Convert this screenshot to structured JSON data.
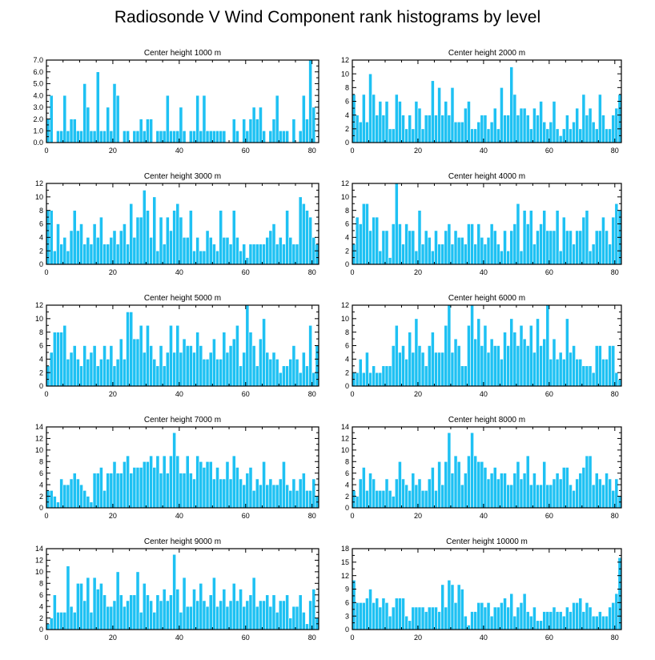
{
  "title": "Radiosonde V Wind Component rank histograms by level",
  "chart_data": [
    {
      "type": "bar",
      "title": "Center height 1000 m",
      "ylim": [
        0,
        7
      ],
      "yticks": [
        "0.0",
        "1.0",
        "2.0",
        "3.0",
        "4.0",
        "5.0",
        "6.0",
        "7.0"
      ],
      "xlim": [
        0,
        82
      ],
      "xticks": [
        0,
        20,
        40,
        60,
        80
      ],
      "values": [
        2,
        4,
        0,
        1,
        1,
        4,
        1,
        2,
        2,
        1,
        1,
        5,
        3,
        1,
        1,
        6,
        1,
        1,
        3,
        1,
        5,
        4,
        0,
        1,
        1,
        0,
        1,
        1,
        2,
        1,
        2,
        2,
        0,
        1,
        1,
        1,
        4,
        1,
        1,
        1,
        3,
        1,
        0,
        1,
        1,
        4,
        1,
        4,
        1,
        1,
        1,
        1,
        1,
        1,
        0,
        0,
        2,
        1,
        0,
        2,
        1,
        2,
        3,
        2,
        3,
        1,
        0,
        1,
        2,
        4,
        1,
        1,
        1,
        0,
        2,
        0,
        1,
        4,
        2,
        7,
        3,
        0
      ]
    },
    {
      "type": "bar",
      "title": "Center height 2000 m",
      "ylim": [
        0,
        12
      ],
      "yticks": [
        "0",
        "2",
        "4",
        "6",
        "8",
        "10",
        "12"
      ],
      "xlim": [
        0,
        82
      ],
      "xticks": [
        0,
        20,
        40,
        60,
        80
      ],
      "values": [
        7,
        4,
        3,
        7,
        3,
        10,
        7,
        4,
        6,
        4,
        6,
        2,
        2,
        7,
        6,
        4,
        2,
        4,
        2,
        6,
        5,
        2,
        4,
        4,
        9,
        4,
        8,
        4,
        6,
        4,
        8,
        3,
        3,
        3,
        5,
        6,
        2,
        2,
        3,
        4,
        4,
        2,
        3,
        5,
        2,
        8,
        4,
        4,
        11,
        7,
        4,
        5,
        5,
        4,
        2,
        5,
        4,
        6,
        3,
        2,
        3,
        6,
        2,
        1,
        2,
        4,
        2,
        3,
        5,
        2,
        7,
        4,
        5,
        3,
        2,
        7,
        4,
        2,
        2,
        4,
        5,
        7
      ]
    },
    {
      "type": "bar",
      "title": "Center height 3000 m",
      "ylim": [
        0,
        12
      ],
      "yticks": [
        "0",
        "2",
        "4",
        "6",
        "8",
        "10",
        "12"
      ],
      "xlim": [
        0,
        82
      ],
      "xticks": [
        0,
        20,
        40,
        60,
        80
      ],
      "values": [
        8,
        8,
        2,
        6,
        3,
        4,
        2,
        5,
        8,
        5,
        6,
        3,
        4,
        3,
        6,
        4,
        7,
        3,
        3,
        4,
        5,
        3,
        5,
        6,
        3,
        9,
        4,
        7,
        7,
        11,
        8,
        4,
        10,
        2,
        7,
        3,
        7,
        5,
        8,
        9,
        7,
        4,
        4,
        8,
        2,
        4,
        2,
        2,
        5,
        4,
        3,
        2,
        8,
        4,
        4,
        3,
        8,
        4,
        2,
        3,
        1,
        3,
        3,
        3,
        3,
        3,
        4,
        5,
        6,
        3,
        4,
        3,
        8,
        4,
        3,
        3,
        10,
        9,
        8,
        7,
        4,
        3
      ]
    },
    {
      "type": "bar",
      "title": "Center height 4000 m",
      "ylim": [
        0,
        12
      ],
      "yticks": [
        "0",
        "2",
        "4",
        "6",
        "8",
        "10",
        "12"
      ],
      "xlim": [
        0,
        82
      ],
      "xticks": [
        0,
        20,
        40,
        60,
        80
      ],
      "values": [
        3,
        7,
        6,
        9,
        9,
        5,
        7,
        7,
        2,
        5,
        5,
        1,
        6,
        12,
        6,
        3,
        6,
        5,
        5,
        2,
        8,
        3,
        5,
        4,
        2,
        5,
        3,
        3,
        5,
        6,
        3,
        5,
        4,
        4,
        3,
        6,
        6,
        3,
        6,
        4,
        3,
        4,
        6,
        5,
        3,
        2,
        5,
        2,
        5,
        6,
        9,
        2,
        8,
        6,
        8,
        3,
        5,
        6,
        8,
        5,
        5,
        5,
        8,
        2,
        7,
        5,
        5,
        3,
        5,
        5,
        7,
        8,
        2,
        3,
        5,
        5,
        7,
        5,
        3,
        7,
        9,
        8
      ]
    },
    {
      "type": "bar",
      "title": "Center height 5000 m",
      "ylim": [
        0,
        12
      ],
      "yticks": [
        "0",
        "2",
        "4",
        "6",
        "8",
        "10",
        "12"
      ],
      "xlim": [
        0,
        82
      ],
      "xticks": [
        0,
        20,
        40,
        60,
        80
      ],
      "values": [
        3,
        5,
        8,
        8,
        8,
        9,
        4,
        5,
        6,
        4,
        3,
        6,
        4,
        5,
        6,
        3,
        4,
        6,
        4,
        6,
        3,
        4,
        7,
        4,
        11,
        11,
        7,
        7,
        9,
        5,
        9,
        6,
        4,
        3,
        6,
        3,
        5,
        9,
        5,
        9,
        5,
        7,
        6,
        6,
        5,
        8,
        6,
        4,
        4,
        5,
        7,
        4,
        4,
        8,
        5,
        6,
        7,
        9,
        3,
        5,
        12,
        8,
        6,
        3,
        7,
        10,
        5,
        4,
        5,
        4,
        2,
        3,
        3,
        4,
        6,
        4,
        2,
        5,
        3,
        9,
        2,
        6
      ]
    },
    {
      "type": "bar",
      "title": "Center height 6000 m",
      "ylim": [
        0,
        12
      ],
      "yticks": [
        "0",
        "2",
        "4",
        "6",
        "8",
        "10",
        "12"
      ],
      "xlim": [
        0,
        82
      ],
      "xticks": [
        0,
        20,
        40,
        60,
        80
      ],
      "values": [
        2,
        2,
        4,
        2,
        5,
        2,
        3,
        2,
        2,
        3,
        3,
        3,
        6,
        9,
        5,
        6,
        4,
        8,
        5,
        10,
        6,
        5,
        3,
        6,
        8,
        5,
        5,
        5,
        9,
        12,
        5,
        7,
        6,
        3,
        3,
        9,
        12,
        7,
        10,
        6,
        9,
        5,
        7,
        6,
        6,
        4,
        8,
        6,
        10,
        8,
        6,
        9,
        7,
        6,
        9,
        5,
        10,
        6,
        7,
        12,
        4,
        7,
        4,
        5,
        4,
        10,
        5,
        6,
        4,
        4,
        3,
        3,
        3,
        2,
        6,
        6,
        4,
        4,
        6,
        6,
        2,
        1
      ]
    },
    {
      "type": "bar",
      "title": "Center height 7000 m",
      "ylim": [
        0,
        14
      ],
      "yticks": [
        "0",
        "2",
        "4",
        "6",
        "8",
        "10",
        "12",
        "14"
      ],
      "xlim": [
        0,
        82
      ],
      "xticks": [
        0,
        20,
        40,
        60,
        80
      ],
      "values": [
        3,
        3,
        2,
        1,
        5,
        4,
        4,
        5,
        6,
        5,
        4,
        3,
        2,
        1,
        6,
        6,
        7,
        3,
        6,
        6,
        8,
        6,
        6,
        8,
        9,
        6,
        7,
        7,
        7,
        8,
        8,
        9,
        7,
        9,
        6,
        9,
        6,
        9,
        13,
        9,
        6,
        6,
        9,
        6,
        5,
        9,
        8,
        7,
        8,
        8,
        5,
        7,
        5,
        5,
        8,
        5,
        9,
        7,
        5,
        4,
        6,
        7,
        3,
        5,
        4,
        8,
        4,
        5,
        4,
        4,
        5,
        8,
        4,
        3,
        5,
        3,
        5,
        6,
        3,
        3,
        5,
        2
      ]
    },
    {
      "type": "bar",
      "title": "Center height 8000 m",
      "ylim": [
        0,
        14
      ],
      "yticks": [
        "0",
        "2",
        "4",
        "6",
        "8",
        "10",
        "12",
        "14"
      ],
      "xlim": [
        0,
        82
      ],
      "xticks": [
        0,
        20,
        40,
        60,
        80
      ],
      "values": [
        3,
        2,
        5,
        7,
        3,
        6,
        5,
        3,
        3,
        3,
        5,
        3,
        2,
        5,
        8,
        5,
        4,
        3,
        6,
        4,
        5,
        3,
        3,
        5,
        7,
        3,
        8,
        4,
        8,
        13,
        6,
        9,
        8,
        4,
        6,
        9,
        13,
        9,
        8,
        8,
        7,
        5,
        6,
        7,
        5,
        6,
        6,
        4,
        4,
        6,
        8,
        5,
        6,
        9,
        4,
        6,
        4,
        4,
        8,
        4,
        4,
        5,
        6,
        5,
        7,
        7,
        4,
        3,
        5,
        6,
        7,
        9,
        9,
        4,
        6,
        5,
        4,
        6,
        5,
        3,
        5,
        2
      ]
    },
    {
      "type": "bar",
      "title": "Center height 9000 m",
      "ylim": [
        0,
        14
      ],
      "yticks": [
        "0",
        "2",
        "4",
        "6",
        "8",
        "10",
        "12",
        "14"
      ],
      "xlim": [
        0,
        82
      ],
      "xticks": [
        0,
        20,
        40,
        60,
        80
      ],
      "values": [
        1,
        2,
        6,
        3,
        3,
        3,
        11,
        4,
        3,
        8,
        8,
        5,
        9,
        3,
        9,
        7,
        8,
        6,
        4,
        4,
        5,
        10,
        6,
        4,
        5,
        6,
        6,
        10,
        3,
        8,
        6,
        5,
        3,
        6,
        5,
        7,
        5,
        6,
        13,
        7,
        3,
        9,
        4,
        4,
        7,
        5,
        8,
        5,
        4,
        6,
        9,
        4,
        5,
        7,
        4,
        5,
        8,
        5,
        7,
        4,
        5,
        6,
        9,
        4,
        5,
        5,
        6,
        4,
        6,
        3,
        5,
        5,
        6,
        2,
        4,
        4,
        6,
        3,
        1,
        5,
        7,
        2
      ]
    },
    {
      "type": "bar",
      "title": "Center height 10000 m",
      "ylim": [
        0,
        18
      ],
      "yticks": [
        "0",
        "3",
        "6",
        "9",
        "12",
        "15",
        "18"
      ],
      "xlim": [
        0,
        82
      ],
      "xticks": [
        0,
        20,
        40,
        60,
        80
      ],
      "values": [
        11,
        6,
        6,
        6,
        7,
        9,
        6,
        7,
        5,
        7,
        6,
        3,
        5,
        7,
        7,
        7,
        3,
        2,
        5,
        5,
        5,
        5,
        4,
        5,
        5,
        5,
        4,
        10,
        5,
        11,
        10,
        6,
        10,
        9,
        3,
        1,
        4,
        4,
        6,
        6,
        5,
        6,
        3,
        5,
        5,
        6,
        7,
        5,
        8,
        3,
        5,
        6,
        8,
        4,
        3,
        5,
        2,
        2,
        4,
        4,
        4,
        5,
        4,
        4,
        3,
        5,
        4,
        6,
        6,
        7,
        4,
        6,
        5,
        3,
        3,
        4,
        3,
        3,
        5,
        6,
        8,
        16
      ]
    }
  ]
}
